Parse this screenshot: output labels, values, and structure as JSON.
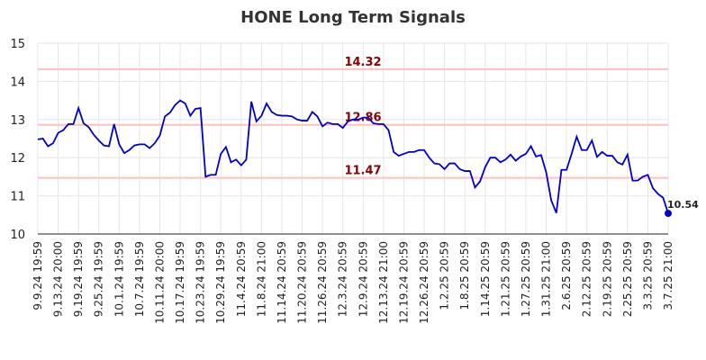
{
  "chart_data": {
    "type": "line",
    "title": "HONE Long Term Signals",
    "categories": [
      "9.9.24 19:59",
      null,
      null,
      null,
      "9.13.24 20:00",
      null,
      null,
      null,
      "9.19.24 19:59",
      null,
      null,
      null,
      "9.25.24 19:59",
      null,
      null,
      null,
      "10.1.24 19:59",
      null,
      null,
      null,
      "10.7.24 19:59",
      null,
      null,
      null,
      "10.11.24 20:00",
      null,
      null,
      null,
      "10.17.24 19:59",
      null,
      null,
      null,
      "10.23.24 19:59",
      null,
      null,
      null,
      "10.29.24 19:59",
      null,
      null,
      null,
      "11.4.24 20:59",
      null,
      null,
      null,
      "11.8.24 21:00",
      null,
      null,
      null,
      "11.14.24 20:59",
      null,
      null,
      null,
      "11.20.24 20:59",
      null,
      null,
      null,
      "11.26.24 20:59",
      null,
      null,
      null,
      "12.3.24 20:59",
      null,
      null,
      null,
      "12.9.24 20:59",
      null,
      null,
      null,
      "12.13.24 21:00",
      null,
      null,
      null,
      "12.19.24 20:59",
      null,
      null,
      null,
      "12.26.24 20:59",
      null,
      null,
      null,
      "1.2.25 20:59",
      null,
      null,
      null,
      "1.8.25 20:59",
      null,
      null,
      null,
      "1.14.25 20:59",
      null,
      null,
      null,
      "1.21.25 20:59",
      null,
      null,
      null,
      "1.27.25 20:59",
      null,
      null,
      null,
      "1.31.25 21:00",
      null,
      null,
      null,
      "2.6.25 20:59",
      null,
      null,
      null,
      "2.12.25 20:59",
      null,
      null,
      null,
      "2.19.25 20:59",
      null,
      null,
      null,
      "2.25.25 20:59",
      null,
      null,
      null,
      "3.3.25 20:59",
      null,
      null,
      null,
      "3.7.25 21:00"
    ],
    "values": [
      12.48,
      12.5,
      12.3,
      12.38,
      12.65,
      12.72,
      12.88,
      12.88,
      13.3,
      12.9,
      12.8,
      12.6,
      12.45,
      12.32,
      12.3,
      12.88,
      12.35,
      12.12,
      12.2,
      12.32,
      12.35,
      12.35,
      12.25,
      12.38,
      12.58,
      13.08,
      13.18,
      13.38,
      13.5,
      13.42,
      13.1,
      13.28,
      13.3,
      11.5,
      11.55,
      11.55,
      12.1,
      12.28,
      11.88,
      11.95,
      11.8,
      11.95,
      13.47,
      12.95,
      13.1,
      13.42,
      13.2,
      13.12,
      13.1,
      13.1,
      13.08,
      13.0,
      12.97,
      12.97,
      13.2,
      13.08,
      12.82,
      12.92,
      12.88,
      12.88,
      12.78,
      12.95,
      13.0,
      13.0,
      13.05,
      13.05,
      12.9,
      12.88,
      12.88,
      12.72,
      12.15,
      12.05,
      12.1,
      12.15,
      12.15,
      12.2,
      12.2,
      12.0,
      11.85,
      11.83,
      11.7,
      11.85,
      11.85,
      11.7,
      11.65,
      11.65,
      11.22,
      11.38,
      11.75,
      12.0,
      12.0,
      11.88,
      11.95,
      12.08,
      11.92,
      12.03,
      12.1,
      12.3,
      12.03,
      12.07,
      11.62,
      10.88,
      10.55,
      11.68,
      11.68,
      12.1,
      12.55,
      12.2,
      12.2,
      12.45,
      12.02,
      12.15,
      12.05,
      12.05,
      11.88,
      11.82,
      12.08,
      11.4,
      11.4,
      11.5,
      11.55,
      11.2,
      11.05,
      10.95,
      10.54
    ],
    "color": "#0000cc",
    "levels": [
      14.32,
      12.86,
      11.47
    ],
    "level_color": "#ffc0c0",
    "level_label_color": "#8b0000",
    "ylim": [
      10,
      15
    ],
    "yticks": [
      10,
      11,
      12,
      13,
      14,
      15
    ],
    "grid": true
  }
}
